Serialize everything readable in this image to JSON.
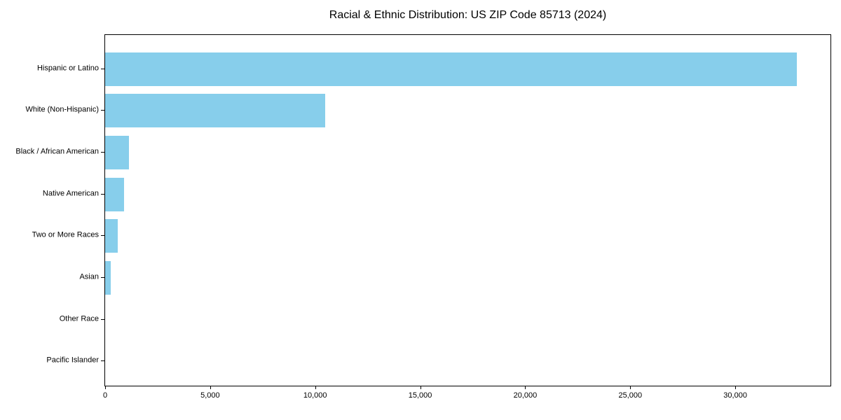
{
  "figure": {
    "background_color": "#ffffff"
  },
  "chart_data": {
    "type": "bar",
    "orientation": "horizontal",
    "title": "Racial & Ethnic Distribution: US ZIP Code 85713 (2024)",
    "xlabel": "",
    "ylabel": "",
    "categories": [
      "Hispanic or Latino",
      "White (Non-Hispanic)",
      "Black / African American",
      "Native American",
      "Two or More Races",
      "Asian",
      "Other Race",
      "Pacific Islander"
    ],
    "values": [
      32920,
      10480,
      1140,
      900,
      610,
      270,
      0,
      0
    ],
    "xlim": [
      0,
      34533
    ],
    "xticks": [
      0,
      5000,
      10000,
      15000,
      20000,
      25000,
      30000
    ],
    "xtick_labels": [
      "0",
      "5,000",
      "10,000",
      "15,000",
      "20,000",
      "25,000",
      "30,000"
    ],
    "bar_color": "#87CEEB",
    "axis_color": "#000000",
    "grid": false,
    "legend": null
  }
}
